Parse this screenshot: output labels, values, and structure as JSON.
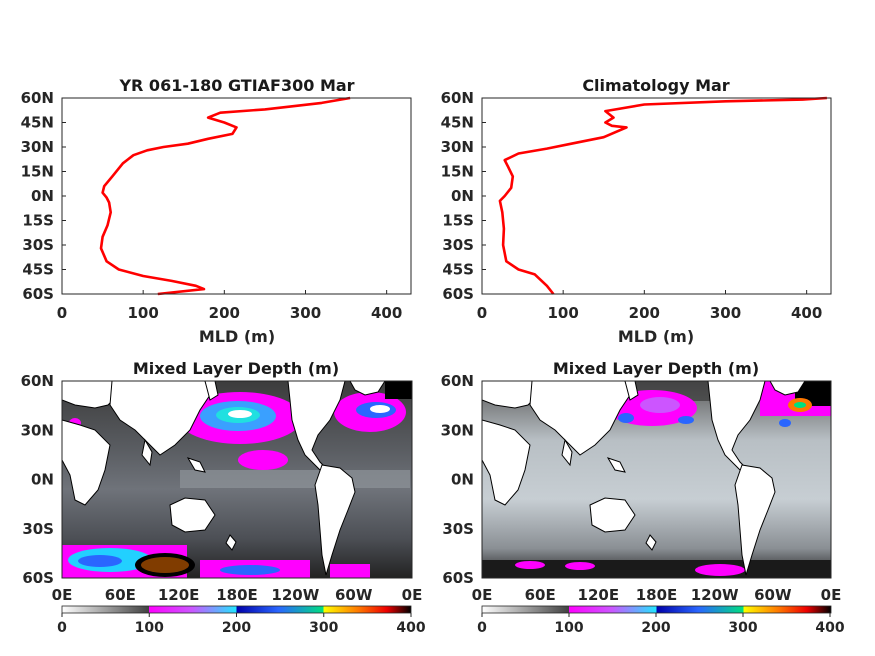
{
  "chart_data": [
    {
      "type": "line",
      "title": "YR 061-180 GTIAF300 Mar",
      "xlabel": "MLD (m)",
      "ylabel": "",
      "xlim": [
        0,
        430
      ],
      "ylim": [
        -60,
        60
      ],
      "xticks": [
        "0",
        "100",
        "200",
        "300",
        "400"
      ],
      "yticks": [
        "60N",
        "45N",
        "30N",
        "15N",
        "0N",
        "15S",
        "30S",
        "45S",
        "60S"
      ],
      "series": [
        {
          "color": "#ff0000",
          "x": [
            118,
            175,
            165,
            135,
            100,
            70,
            55,
            48,
            50,
            56,
            60,
            58,
            55,
            50,
            52,
            62,
            75,
            88,
            105,
            125,
            155,
            180,
            210,
            215,
            200,
            180,
            195,
            250,
            320,
            355
          ],
          "y": [
            -60,
            -57,
            -55,
            -52,
            -49,
            -45,
            -40,
            -32,
            -25,
            -18,
            -10,
            -4,
            -1,
            2,
            6,
            12,
            20,
            25,
            28,
            30,
            32,
            35,
            38,
            42,
            45,
            48,
            51,
            53,
            57,
            60
          ]
        }
      ]
    },
    {
      "type": "line",
      "title": "Climatology Mar",
      "xlabel": "MLD (m)",
      "ylabel": "",
      "xlim": [
        0,
        430
      ],
      "ylim": [
        -60,
        60
      ],
      "xticks": [
        "0",
        "100",
        "200",
        "300",
        "400"
      ],
      "yticks": [
        "60N",
        "45N",
        "30N",
        "15N",
        "0N",
        "15S",
        "30S",
        "45S",
        "60S"
      ],
      "series": [
        {
          "color": "#ff0000",
          "x": [
            88,
            80,
            65,
            45,
            30,
            26,
            27,
            25,
            22,
            28,
            36,
            38,
            32,
            28,
            45,
            80,
            110,
            150,
            178,
            160,
            152,
            162,
            152,
            200,
            300,
            395,
            425
          ],
          "y": [
            -60,
            -55,
            -48,
            -45,
            -40,
            -30,
            -20,
            -10,
            -3,
            0,
            5,
            12,
            18,
            22,
            26,
            29,
            32,
            36,
            42,
            43,
            45,
            48,
            52,
            56,
            58,
            59,
            60
          ]
        }
      ]
    },
    {
      "type": "heatmap",
      "title": "Mixed Layer Depth (m)",
      "xticks": [
        "0E",
        "60E",
        "120E",
        "180E",
        "120W",
        "60W",
        "0E"
      ],
      "yticks": [
        "60N",
        "30N",
        "0N",
        "30S",
        "60S"
      ],
      "colorbar": {
        "ticks": [
          "0",
          "100",
          "200",
          "300",
          "400"
        ],
        "range": [
          0,
          400
        ]
      }
    },
    {
      "type": "heatmap",
      "title": "Mixed Layer Depth (m)",
      "xticks": [
        "0E",
        "60E",
        "120E",
        "180E",
        "120W",
        "60W",
        "0E"
      ],
      "yticks": [
        "60N",
        "30N",
        "0N",
        "30S",
        "60S"
      ],
      "colorbar": {
        "ticks": [
          "0",
          "100",
          "200",
          "300",
          "400"
        ],
        "range": [
          0,
          400
        ]
      }
    }
  ]
}
